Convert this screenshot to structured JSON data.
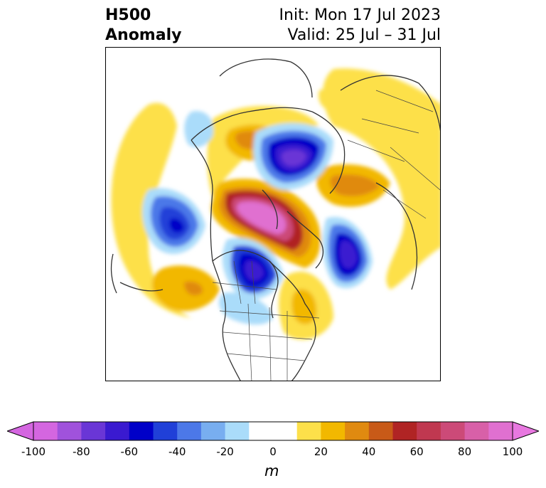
{
  "title": {
    "left_line1": "H500",
    "left_line2": "Anomaly",
    "right_line1": "Init: Mon 17 Jul 2023",
    "right_line2": "Valid: 25 Jul – 31 Jul"
  },
  "colorbar": {
    "units": "m",
    "tick_labels": [
      "-100",
      "-80",
      "-60",
      "-40",
      "-20",
      "0",
      "20",
      "40",
      "60",
      "80",
      "100"
    ],
    "min": -100,
    "max": 100,
    "step": 10,
    "extend": "both",
    "colors": [
      "#d466e0",
      "#a052dc",
      "#6a36d6",
      "#3a1ad0",
      "#0000c8",
      "#2040d8",
      "#4c78e8",
      "#78aef0",
      "#aadcfa",
      "#ffffff",
      "#ffffff",
      "#fde04a",
      "#f2b800",
      "#e08a10",
      "#c85a18",
      "#b02424",
      "#c03850",
      "#cc4a78",
      "#d860a8",
      "#e070d0"
    ],
    "under_color": "#d466e0",
    "over_color": "#e878e0"
  },
  "map": {
    "projection": "polar-stereographic",
    "region": "Northern Hemisphere / North America",
    "features": [
      "coastlines",
      "country borders",
      "US state borders",
      "Canadian province borders"
    ]
  }
}
